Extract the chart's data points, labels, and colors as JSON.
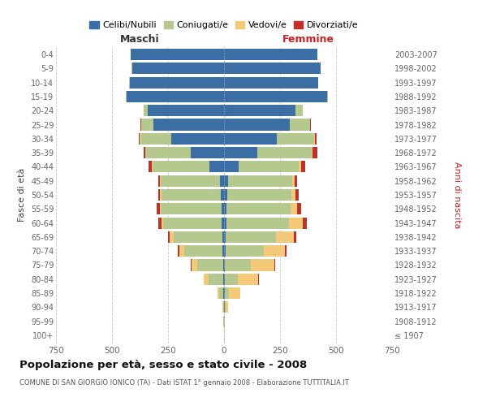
{
  "age_groups": [
    "100+",
    "95-99",
    "90-94",
    "85-89",
    "80-84",
    "75-79",
    "70-74",
    "65-69",
    "60-64",
    "55-59",
    "50-54",
    "45-49",
    "40-44",
    "35-39",
    "30-34",
    "25-29",
    "20-24",
    "15-19",
    "10-14",
    "5-9",
    "0-4"
  ],
  "birth_years": [
    "≤ 1907",
    "1908-1912",
    "1913-1917",
    "1918-1922",
    "1923-1927",
    "1928-1932",
    "1933-1937",
    "1938-1942",
    "1943-1947",
    "1948-1952",
    "1953-1957",
    "1958-1962",
    "1963-1967",
    "1968-1972",
    "1973-1977",
    "1978-1982",
    "1983-1987",
    "1988-1992",
    "1993-1997",
    "1998-2002",
    "2003-2007"
  ],
  "maschi": {
    "celibi": [
      0,
      0,
      0,
      2,
      5,
      5,
      8,
      8,
      10,
      12,
      15,
      18,
      65,
      150,
      235,
      315,
      340,
      435,
      420,
      410,
      415
    ],
    "coniugati": [
      1,
      2,
      5,
      20,
      65,
      115,
      170,
      215,
      260,
      270,
      265,
      265,
      255,
      200,
      140,
      55,
      20,
      5,
      3,
      2,
      0
    ],
    "vedovi": [
      0,
      0,
      2,
      8,
      20,
      25,
      22,
      18,
      8,
      6,
      5,
      3,
      2,
      2,
      1,
      0,
      0,
      0,
      0,
      0,
      0
    ],
    "divorziati": [
      0,
      0,
      0,
      0,
      2,
      5,
      8,
      8,
      15,
      12,
      10,
      8,
      15,
      8,
      5,
      2,
      0,
      0,
      0,
      0,
      0
    ]
  },
  "femmine": {
    "nubili": [
      0,
      0,
      2,
      2,
      5,
      5,
      8,
      8,
      10,
      12,
      15,
      18,
      65,
      150,
      235,
      295,
      320,
      460,
      420,
      430,
      415
    ],
    "coniugate": [
      0,
      2,
      5,
      18,
      55,
      115,
      170,
      225,
      280,
      285,
      285,
      285,
      270,
      240,
      168,
      90,
      30,
      5,
      2,
      2,
      0
    ],
    "vedove": [
      0,
      2,
      12,
      52,
      92,
      105,
      92,
      80,
      60,
      30,
      20,
      12,
      8,
      5,
      2,
      0,
      0,
      0,
      0,
      0,
      0
    ],
    "divorziate": [
      0,
      0,
      0,
      2,
      3,
      5,
      8,
      10,
      18,
      18,
      12,
      10,
      20,
      20,
      8,
      2,
      2,
      0,
      0,
      0,
      0
    ]
  },
  "colors": {
    "celibi_nubili": "#3a6ea5",
    "coniugati": "#b5c98e",
    "vedovi": "#f5c97a",
    "divorziati": "#c0312b"
  },
  "title": "Popolazione per età, sesso e stato civile - 2008",
  "subtitle": "COMUNE DI SAN GIORGIO IONICO (TA) - Dati ISTAT 1° gennaio 2008 - Elaborazione TUTTITALIA.IT",
  "label_maschi": "Maschi",
  "label_femmine": "Femmine",
  "ylabel_left": "Fasce di età",
  "ylabel_right": "Anni di nascita",
  "xlim": 750,
  "legend_labels": [
    "Celibi/Nubili",
    "Coniugati/e",
    "Vedovi/e",
    "Divorziati/e"
  ],
  "bg_color": "#ffffff",
  "grid_color": "#cccccc",
  "maschi_color": "#333333",
  "femmine_color": "#cc2222"
}
